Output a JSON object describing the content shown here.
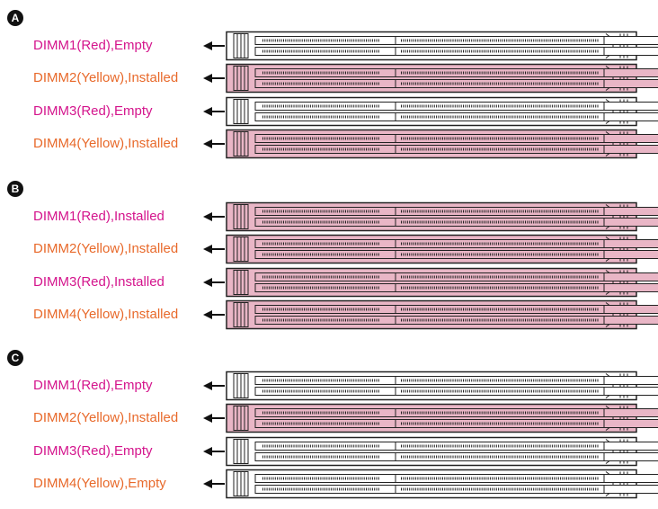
{
  "groups": [
    {
      "badge": "A",
      "slots": [
        {
          "label": "DIMM1(Red),Empty",
          "label_color": "#d4148c",
          "fill": "#ffffff"
        },
        {
          "label": "DIMM2(Yellow),Installed",
          "label_color": "#e8692a",
          "fill": "#e9b6c6"
        },
        {
          "label": "DIMM3(Red),Empty",
          "label_color": "#d4148c",
          "fill": "#ffffff"
        },
        {
          "label": "DIMM4(Yellow),Installed",
          "label_color": "#e8692a",
          "fill": "#e9b6c6"
        }
      ]
    },
    {
      "badge": "B",
      "slots": [
        {
          "label": "DIMM1(Red),Installed",
          "label_color": "#d4148c",
          "fill": "#e9b6c6"
        },
        {
          "label": "DIMM2(Yellow),Installed",
          "label_color": "#e8692a",
          "fill": "#e9b6c6"
        },
        {
          "label": "DIMM3(Red),Installed",
          "label_color": "#d4148c",
          "fill": "#e9b6c6"
        },
        {
          "label": "DIMM4(Yellow),Installed",
          "label_color": "#e8692a",
          "fill": "#e9b6c6"
        }
      ]
    },
    {
      "badge": "C",
      "slots": [
        {
          "label": "DIMM1(Red),Empty",
          "label_color": "#d4148c",
          "fill": "#ffffff"
        },
        {
          "label": "DIMM2(Yellow),Installed",
          "label_color": "#e8692a",
          "fill": "#e9b6c6"
        },
        {
          "label": "DIMM3(Red),Empty",
          "label_color": "#d4148c",
          "fill": "#ffffff"
        },
        {
          "label": "DIMM4(Yellow),Empty",
          "label_color": "#e8692a",
          "fill": "#ffffff"
        }
      ]
    }
  ]
}
